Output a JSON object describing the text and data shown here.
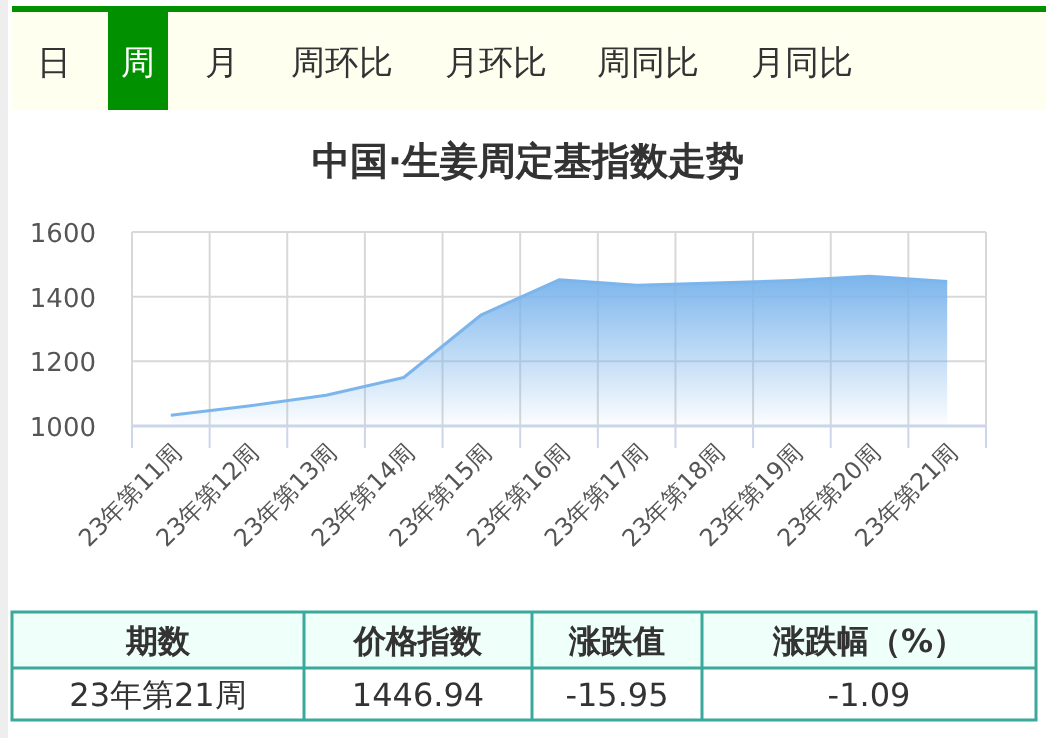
{
  "chart_data": [
    {
      "type": "other",
      "annotations": [
        "日",
        "周",
        "月",
        "周环比",
        "月环比",
        "周同比",
        "月同比"
      ],
      "colors": [
        "#fffff0",
        "#009000",
        "#fffff0",
        "#fffff0",
        "#fffff0",
        "#fffff0",
        "#fffff0"
      ]
    },
    {
      "type": "area",
      "title": "中国·生姜周定基指数走势",
      "categories": [
        "23年第11周",
        "23年第12周",
        "23年第13周",
        "23年第14周",
        "23年第15周",
        "23年第16周",
        "23年第17周",
        "23年第18周",
        "23年第19周",
        "23年第20周",
        "23年第21周"
      ],
      "series": [
        {
          "color": "#7cb5ec",
          "values": [
            1033,
            1062,
            1095,
            1150,
            1344,
            1452,
            1435,
            1442,
            1450,
            1463,
            1447
          ]
        }
      ],
      "ylim": [
        1000,
        1600
      ],
      "yticks": [
        1000,
        1200,
        1400,
        1600
      ],
      "grid": true
    },
    {
      "type": "other",
      "annotations": [
        "期数",
        "价格指数",
        "涨跌值",
        "涨跌幅（%）",
        "23年第21周",
        "1446.94",
        "-15.95",
        "-1.09"
      ]
    }
  ]
}
